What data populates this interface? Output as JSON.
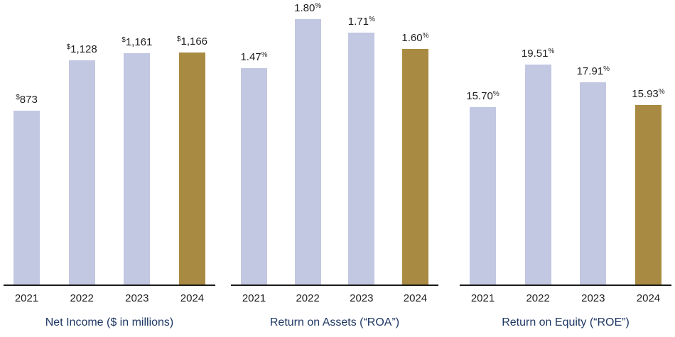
{
  "page": {
    "background": "#ffffff"
  },
  "colors": {
    "bar_default": "#c2c7e2",
    "bar_highlight": "#a98a42",
    "title_text": "#1f3864",
    "label_text": "#1f1f1f",
    "axis_line": "#1a1a1a"
  },
  "chart_data": [
    {
      "type": "bar",
      "title": "Net Income ($ in millions)",
      "title_position": "bottom",
      "categories": [
        "2021",
        "2022",
        "2023",
        "2024"
      ],
      "values": [
        873,
        1128,
        1161,
        1166
      ],
      "display_values": [
        "873",
        "1,128",
        "1,161",
        "1,166"
      ],
      "value_prefix": "$",
      "value_suffix": "",
      "xlabel": "",
      "ylabel": "",
      "ylim": [
        0,
        1437
      ],
      "grid": false,
      "legend": "none",
      "bar_color_default": "#c2c7e2",
      "bar_color_highlight": "#a98a42",
      "highlight_index": 3
    },
    {
      "type": "bar",
      "title": "Return on Assets (“ROA”)",
      "title_position": "bottom",
      "categories": [
        "2021",
        "2022",
        "2023",
        "2024"
      ],
      "values": [
        1.47,
        1.8,
        1.71,
        1.6
      ],
      "display_values": [
        "1.47",
        "1.80",
        "1.71",
        "1.60"
      ],
      "value_prefix": "",
      "value_suffix": "%",
      "xlabel": "",
      "ylabel": "",
      "ylim": [
        0,
        1.94
      ],
      "grid": false,
      "legend": "none",
      "bar_color_default": "#c2c7e2",
      "bar_color_highlight": "#a98a42",
      "highlight_index": 3
    },
    {
      "type": "bar",
      "title": "Return on Equity (“ROE”)",
      "title_position": "bottom",
      "categories": [
        "2021",
        "2022",
        "2023",
        "2024"
      ],
      "values": [
        15.7,
        19.51,
        17.91,
        15.93
      ],
      "display_values": [
        "15.70",
        "19.51",
        "17.91",
        "15.93"
      ],
      "value_prefix": "",
      "value_suffix": "%",
      "xlabel": "",
      "ylabel": "",
      "ylim": [
        0,
        25.35
      ],
      "grid": false,
      "legend": "none",
      "bar_color_default": "#c2c7e2",
      "bar_color_highlight": "#a98a42",
      "highlight_index": 3
    }
  ]
}
